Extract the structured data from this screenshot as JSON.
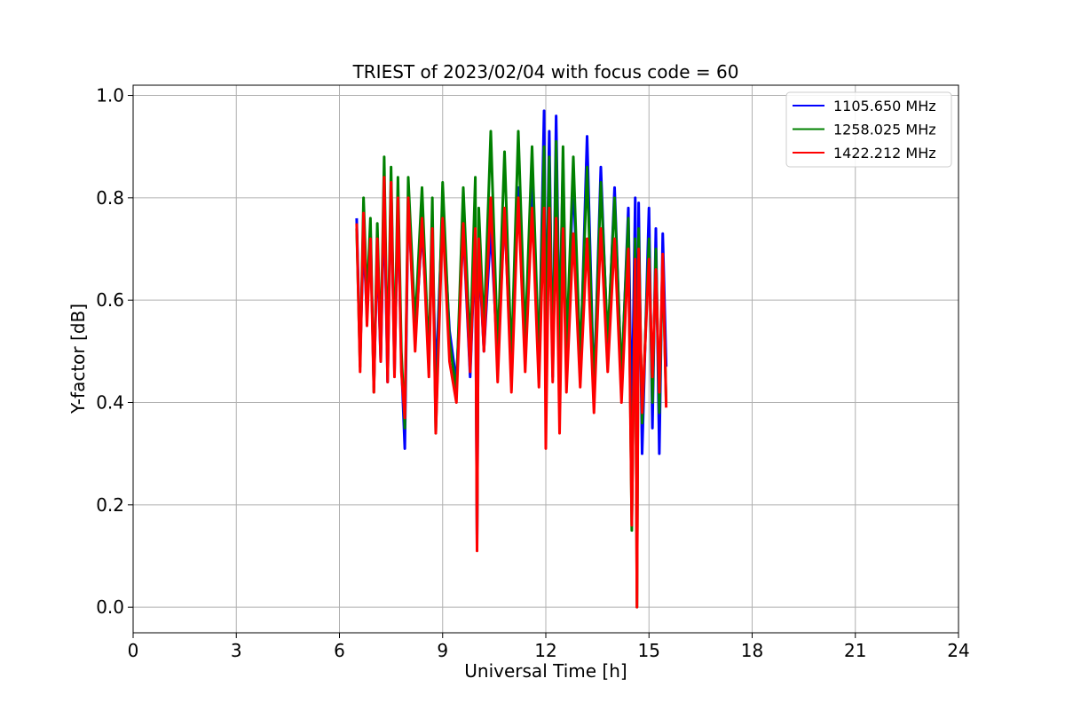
{
  "chart_data": {
    "type": "line",
    "title": "TRIEST of 2023/02/04 with focus code = 60",
    "xlabel": "Universal Time [h]",
    "ylabel": "Y-factor [dB]",
    "xlim": [
      0,
      24
    ],
    "ylim": [
      -0.05,
      1.02
    ],
    "xticks": [
      0,
      3,
      6,
      9,
      12,
      15,
      18,
      21,
      24
    ],
    "xtick_labels": [
      "0",
      "3",
      "6",
      "9",
      "12",
      "15",
      "18",
      "21",
      "24"
    ],
    "yticks": [
      0.0,
      0.2,
      0.4,
      0.6,
      0.8,
      1.0
    ],
    "ytick_labels": [
      "0.0",
      "0.2",
      "0.4",
      "0.6",
      "0.8",
      "1.0"
    ],
    "grid": true,
    "legend_position": "top-right",
    "series": [
      {
        "name": "1105.650 MHz",
        "color": "#0000ff",
        "x": [
          6.5,
          6.6,
          6.7,
          6.8,
          6.9,
          7.0,
          7.1,
          7.2,
          7.3,
          7.4,
          7.5,
          7.6,
          7.7,
          7.8,
          7.9,
          8.0,
          8.2,
          8.4,
          8.6,
          8.7,
          8.8,
          9.0,
          9.2,
          9.4,
          9.6,
          9.8,
          9.95,
          10.0,
          10.05,
          10.2,
          10.4,
          10.6,
          10.8,
          11.0,
          11.2,
          11.4,
          11.6,
          11.8,
          11.95,
          12.0,
          12.1,
          12.2,
          12.3,
          12.4,
          12.5,
          12.6,
          12.8,
          13.0,
          13.2,
          13.4,
          13.6,
          13.8,
          14.0,
          14.2,
          14.4,
          14.5,
          14.6,
          14.65,
          14.7,
          14.8,
          15.0,
          15.1,
          15.2,
          15.3,
          15.4,
          15.5
        ],
        "y": [
          0.76,
          0.49,
          0.72,
          0.57,
          0.74,
          0.43,
          0.7,
          0.48,
          0.8,
          0.44,
          0.83,
          0.46,
          0.78,
          0.48,
          0.31,
          0.8,
          0.52,
          0.74,
          0.5,
          0.72,
          0.44,
          0.78,
          0.54,
          0.44,
          0.74,
          0.45,
          0.72,
          0.12,
          0.7,
          0.5,
          0.74,
          0.48,
          0.77,
          0.45,
          0.82,
          0.49,
          0.82,
          0.47,
          0.97,
          0.5,
          0.93,
          0.45,
          0.96,
          0.52,
          0.87,
          0.48,
          0.84,
          0.46,
          0.92,
          0.42,
          0.86,
          0.5,
          0.82,
          0.44,
          0.78,
          0.35,
          0.8,
          0.32,
          0.79,
          0.3,
          0.78,
          0.35,
          0.74,
          0.3,
          0.73,
          0.47
        ]
      },
      {
        "name": "1258.025 MHz",
        "color": "#008000",
        "x": [
          6.5,
          6.6,
          6.7,
          6.8,
          6.9,
          7.0,
          7.1,
          7.2,
          7.3,
          7.4,
          7.5,
          7.6,
          7.7,
          7.8,
          7.9,
          8.0,
          8.2,
          8.4,
          8.6,
          8.7,
          8.8,
          9.0,
          9.2,
          9.4,
          9.6,
          9.8,
          9.95,
          10.0,
          10.05,
          10.2,
          10.4,
          10.6,
          10.8,
          11.0,
          11.2,
          11.4,
          11.6,
          11.8,
          11.95,
          12.0,
          12.1,
          12.2,
          12.3,
          12.4,
          12.5,
          12.6,
          12.8,
          13.0,
          13.2,
          13.4,
          13.6,
          13.8,
          14.0,
          14.2,
          14.4,
          14.5,
          14.6,
          14.65,
          14.7,
          14.8,
          15.0,
          15.1,
          15.2,
          15.3,
          15.4,
          15.5
        ],
        "y": [
          0.74,
          0.47,
          0.8,
          0.6,
          0.76,
          0.42,
          0.75,
          0.5,
          0.88,
          0.47,
          0.86,
          0.48,
          0.84,
          0.5,
          0.35,
          0.84,
          0.55,
          0.82,
          0.48,
          0.8,
          0.34,
          0.83,
          0.52,
          0.42,
          0.82,
          0.5,
          0.84,
          0.14,
          0.78,
          0.54,
          0.93,
          0.5,
          0.89,
          0.48,
          0.93,
          0.52,
          0.9,
          0.48,
          0.9,
          0.52,
          0.88,
          0.46,
          0.91,
          0.5,
          0.9,
          0.5,
          0.88,
          0.48,
          0.86,
          0.42,
          0.83,
          0.52,
          0.8,
          0.45,
          0.76,
          0.15,
          0.72,
          0.0,
          0.74,
          0.36,
          0.72,
          0.4,
          0.7,
          0.38,
          0.68,
          0.4
        ]
      },
      {
        "name": "1422.212 MHz",
        "color": "#ff0000",
        "x": [
          6.5,
          6.6,
          6.7,
          6.8,
          6.9,
          7.0,
          7.1,
          7.2,
          7.3,
          7.4,
          7.5,
          7.6,
          7.7,
          7.8,
          7.9,
          8.0,
          8.2,
          8.4,
          8.6,
          8.7,
          8.8,
          9.0,
          9.2,
          9.4,
          9.6,
          9.8,
          9.95,
          10.0,
          10.05,
          10.2,
          10.4,
          10.6,
          10.8,
          11.0,
          11.2,
          11.4,
          11.6,
          11.8,
          11.95,
          12.0,
          12.1,
          12.2,
          12.3,
          12.4,
          12.5,
          12.6,
          12.8,
          13.0,
          13.2,
          13.4,
          13.6,
          13.8,
          14.0,
          14.2,
          14.4,
          14.5,
          14.6,
          14.65,
          14.7,
          14.8,
          15.0,
          15.1,
          15.2,
          15.3,
          15.4,
          15.5
        ],
        "y": [
          0.75,
          0.46,
          0.77,
          0.55,
          0.72,
          0.42,
          0.72,
          0.48,
          0.84,
          0.44,
          0.83,
          0.45,
          0.8,
          0.46,
          0.37,
          0.8,
          0.5,
          0.76,
          0.45,
          0.74,
          0.34,
          0.76,
          0.48,
          0.4,
          0.75,
          0.46,
          0.74,
          0.11,
          0.72,
          0.5,
          0.8,
          0.44,
          0.78,
          0.42,
          0.8,
          0.46,
          0.78,
          0.43,
          0.78,
          0.31,
          0.78,
          0.44,
          0.76,
          0.34,
          0.74,
          0.42,
          0.73,
          0.43,
          0.72,
          0.38,
          0.74,
          0.46,
          0.72,
          0.4,
          0.7,
          0.16,
          0.68,
          0.0,
          0.7,
          0.38,
          0.68,
          0.45,
          0.66,
          0.42,
          0.69,
          0.39
        ]
      }
    ]
  }
}
